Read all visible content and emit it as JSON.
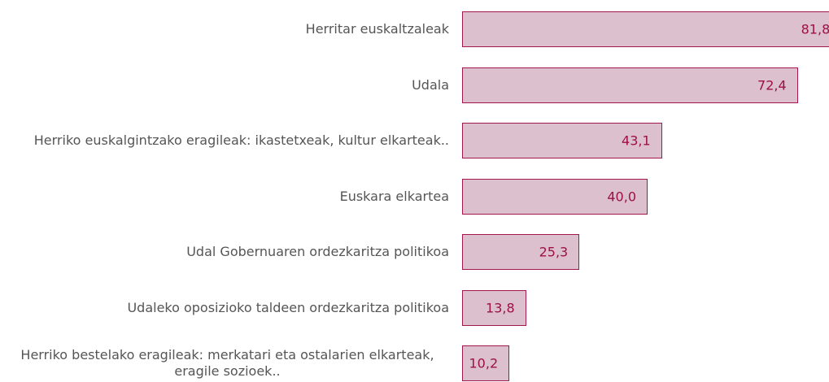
{
  "chart_data": {
    "type": "bar",
    "orientation": "horizontal",
    "categories": [
      "Herritar euskaltzaleak",
      "Udala",
      "Herriko euskalgintzako eragileak: ikastetxeak, kultur elkarteak..",
      "Euskara elkartea",
      "Udal Gobernuaren ordezkaritza politikoa",
      "Udaleko oposizioko taldeen ordezkaritza politikoa",
      "Herriko bestelako eragileak: merkatari eta ostalarien elkarteak, eragile sozioek.."
    ],
    "values": [
      81.8,
      72.4,
      43.1,
      40.0,
      25.3,
      13.8,
      10.2
    ],
    "value_labels": [
      "81,8",
      "72,4",
      "43,1",
      "40,0",
      "25,3",
      "13,8",
      "10,2"
    ],
    "color": "#dcc0ce"
  }
}
